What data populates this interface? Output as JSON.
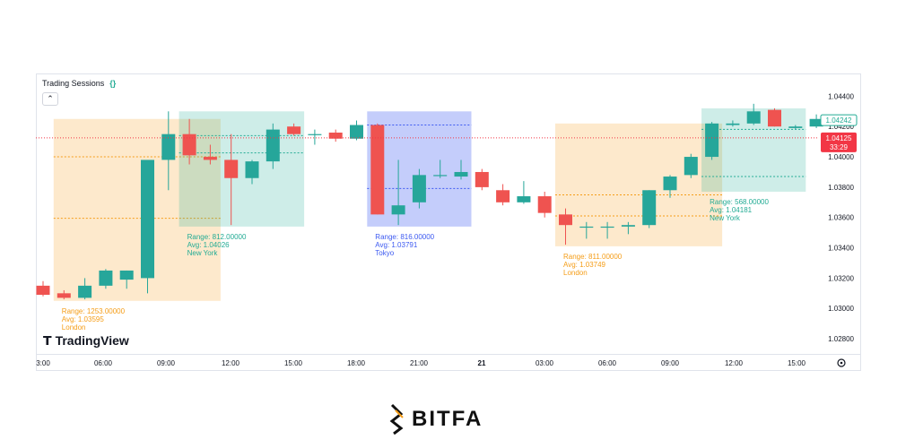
{
  "indicator": {
    "title": "Trading Sessions",
    "icon": "{}"
  },
  "branding": {
    "tradingview": "TradingView",
    "watermark": "BITFA"
  },
  "chart_data": {
    "type": "candlestick",
    "ylim": [
      1.027,
      1.0455
    ],
    "y_ticks": [
      "1.02800",
      "1.03000",
      "1.03200",
      "1.03400",
      "1.03600",
      "1.03800",
      "1.04000",
      "1.04200",
      "1.04400"
    ],
    "x_ticks": [
      "3:00",
      "06:00",
      "09:00",
      "12:00",
      "15:00",
      "18:00",
      "21:00",
      "21",
      "03:00",
      "06:00",
      "09:00",
      "12:00",
      "15:00"
    ],
    "candles": [
      {
        "o": 1.0315,
        "h": 1.0318,
        "l": 1.0308,
        "c": 1.0309
      },
      {
        "o": 1.031,
        "h": 1.0312,
        "l": 1.0306,
        "c": 1.0307
      },
      {
        "o": 1.0307,
        "h": 1.032,
        "l": 1.0306,
        "c": 1.0315
      },
      {
        "o": 1.0315,
        "h": 1.0326,
        "l": 1.0313,
        "c": 1.0325
      },
      {
        "o": 1.0319,
        "h": 1.0325,
        "l": 1.0313,
        "c": 1.0325
      },
      {
        "o": 1.032,
        "h": 1.0398,
        "l": 1.031,
        "c": 1.0398
      },
      {
        "o": 1.0398,
        "h": 1.043,
        "l": 1.0378,
        "c": 1.0415
      },
      {
        "o": 1.0415,
        "h": 1.0425,
        "l": 1.0395,
        "c": 1.0401
      },
      {
        "o": 1.04,
        "h": 1.0408,
        "l": 1.0395,
        "c": 1.0398
      },
      {
        "o": 1.0398,
        "h": 1.0415,
        "l": 1.0355,
        "c": 1.0386
      },
      {
        "o": 1.0386,
        "h": 1.0398,
        "l": 1.0382,
        "c": 1.0397
      },
      {
        "o": 1.0397,
        "h": 1.0422,
        "l": 1.0392,
        "c": 1.0418
      },
      {
        "o": 1.042,
        "h": 1.0422,
        "l": 1.0414,
        "c": 1.0415
      },
      {
        "o": 1.0415,
        "h": 1.0418,
        "l": 1.0408,
        "c": 1.0415
      },
      {
        "o": 1.0416,
        "h": 1.0418,
        "l": 1.041,
        "c": 1.0412
      },
      {
        "o": 1.0412,
        "h": 1.0424,
        "l": 1.0411,
        "c": 1.0421
      },
      {
        "o": 1.0421,
        "h": 1.0422,
        "l": 1.0362,
        "c": 1.0362
      },
      {
        "o": 1.0362,
        "h": 1.0398,
        "l": 1.0355,
        "c": 1.0368
      },
      {
        "o": 1.037,
        "h": 1.0392,
        "l": 1.0366,
        "c": 1.0388
      },
      {
        "o": 1.0388,
        "h": 1.0398,
        "l": 1.0386,
        "c": 1.0388
      },
      {
        "o": 1.0387,
        "h": 1.0398,
        "l": 1.0385,
        "c": 1.039
      },
      {
        "o": 1.039,
        "h": 1.0392,
        "l": 1.0378,
        "c": 1.038
      },
      {
        "o": 1.0378,
        "h": 1.0382,
        "l": 1.0368,
        "c": 1.037
      },
      {
        "o": 1.037,
        "h": 1.0384,
        "l": 1.0369,
        "c": 1.0374
      },
      {
        "o": 1.0374,
        "h": 1.0377,
        "l": 1.036,
        "c": 1.0363
      },
      {
        "o": 1.0362,
        "h": 1.0366,
        "l": 1.0342,
        "c": 1.0355
      },
      {
        "o": 1.0354,
        "h": 1.0357,
        "l": 1.0346,
        "c": 1.0354
      },
      {
        "o": 1.0354,
        "h": 1.0357,
        "l": 1.0346,
        "c": 1.0354
      },
      {
        "o": 1.0354,
        "h": 1.0357,
        "l": 1.0349,
        "c": 1.0355
      },
      {
        "o": 1.0355,
        "h": 1.0378,
        "l": 1.0353,
        "c": 1.0378
      },
      {
        "o": 1.0378,
        "h": 1.0388,
        "l": 1.0373,
        "c": 1.0387
      },
      {
        "o": 1.0388,
        "h": 1.0402,
        "l": 1.0386,
        "c": 1.04
      },
      {
        "o": 1.04,
        "h": 1.0423,
        "l": 1.0398,
        "c": 1.0422
      },
      {
        "o": 1.0421,
        "h": 1.0424,
        "l": 1.042,
        "c": 1.0422
      },
      {
        "o": 1.0422,
        "h": 1.0435,
        "l": 1.0421,
        "c": 1.043
      },
      {
        "o": 1.0431,
        "h": 1.0432,
        "l": 1.042,
        "c": 1.042
      },
      {
        "o": 1.0419,
        "h": 1.0421,
        "l": 1.0418,
        "c": 1.042
      },
      {
        "o": 1.042,
        "h": 1.0428,
        "l": 1.0419,
        "c": 1.0425
      }
    ],
    "sessions": [
      {
        "name": "London",
        "range": "Range: 1253.00000",
        "avg": "Avg: 1.03595",
        "color": "#f59d17",
        "from": 1,
        "to": 8,
        "high": 1.0425,
        "low": 1.0305,
        "avg_val": 1.03595,
        "mid": 1.04,
        "label_pos": "below"
      },
      {
        "name": "New York",
        "range": "Range: 812.00000",
        "avg": "Avg: 1.04026",
        "color": "#22ab94",
        "from": 7,
        "to": 12,
        "high": 1.043,
        "low": 1.0354,
        "avg_val": 1.04026,
        "mid": 1.0414,
        "label_pos": "below"
      },
      {
        "name": "Tokyo",
        "range": "Range: 816.00000",
        "avg": "Avg: 1.03791",
        "color": "#3d5af1",
        "from": 16,
        "to": 20,
        "high": 1.043,
        "low": 1.0354,
        "avg_val": 1.03791,
        "mid": 1.0421,
        "label_pos": "below"
      },
      {
        "name": "London",
        "range": "Range: 811.00000",
        "avg": "Avg: 1.03749",
        "color": "#f59d17",
        "from": 25,
        "to": 32,
        "high": 1.0422,
        "low": 1.0341,
        "avg_val": 1.03749,
        "mid": 1.0361,
        "label_pos": "below"
      },
      {
        "name": "New York",
        "range": "Range: 568.00000",
        "avg": "Avg: 1.04181",
        "color": "#22ab94",
        "from": 32,
        "to": 36,
        "high": 1.0432,
        "low": 1.0377,
        "avg_val": 1.04181,
        "mid": 1.0387,
        "label_pos": "inside"
      }
    ],
    "last_price": {
      "value": "1.04242",
      "color": "#22ab94"
    },
    "cur_price": {
      "value": "1.04125",
      "countdown": "33:29",
      "color": "#f23645"
    }
  }
}
